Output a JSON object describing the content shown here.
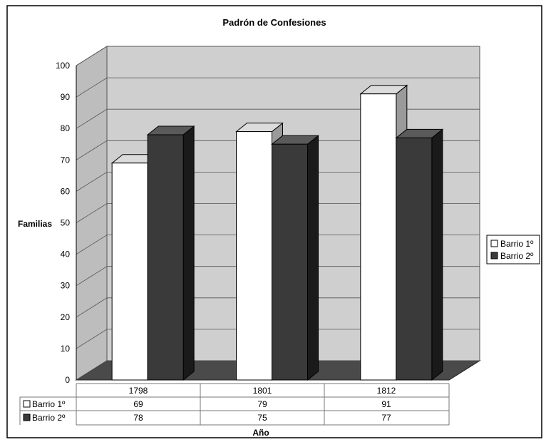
{
  "chart_data": {
    "type": "bar",
    "title": "Padrón de Confesiones",
    "xlabel": "Año",
    "ylabel": "Familias",
    "categories": [
      "1798",
      "1801",
      "1812"
    ],
    "series": [
      {
        "name": "Barrio 1º",
        "values": [
          69,
          79,
          91
        ],
        "color": "#ffffff"
      },
      {
        "name": "Barrio 2º",
        "values": [
          78,
          75,
          77
        ],
        "color": "#3a3a3a"
      }
    ],
    "ylim": [
      0,
      100
    ],
    "yticks": [
      "0",
      "10",
      "20",
      "30",
      "40",
      "50",
      "60",
      "70",
      "80",
      "90",
      "100"
    ],
    "grid": true,
    "three_d": true,
    "legend_position": "right",
    "data_table": true,
    "colors": {
      "wall": "#c9c9c9",
      "floor": "#4a4a4a",
      "dark_bar": "#3a3a3a",
      "light_bar": "#ffffff"
    }
  }
}
